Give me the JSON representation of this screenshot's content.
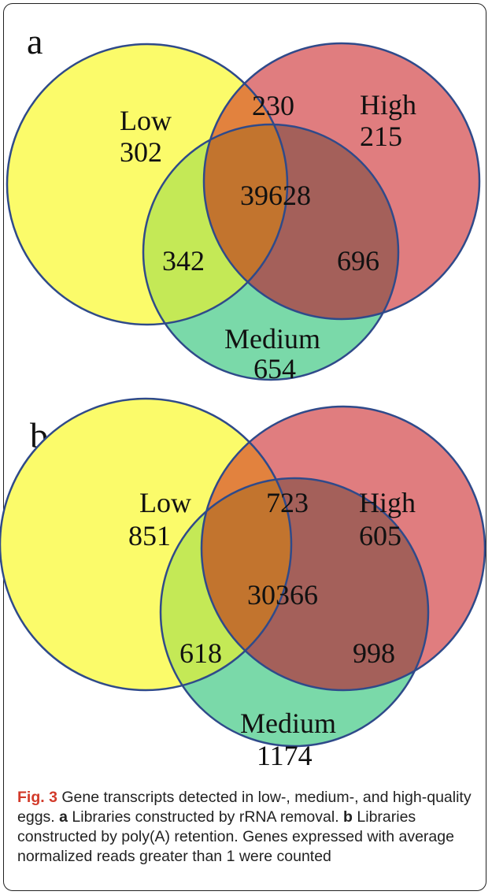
{
  "panels": [
    {
      "letter": "a",
      "sets": {
        "low": {
          "name": "Low",
          "only": "302"
        },
        "high": {
          "name": "High",
          "only": "215"
        },
        "medium": {
          "name": "Medium",
          "only": "654"
        }
      },
      "overlaps": {
        "low_high": "230",
        "low_medium": "342",
        "high_medium": "696",
        "all": "39628"
      }
    },
    {
      "letter": "b",
      "sets": {
        "low": {
          "name": "Low",
          "only": "851"
        },
        "high": {
          "name": "High",
          "only": "605"
        },
        "medium": {
          "name": "Medium",
          "only": "1174"
        }
      },
      "overlaps": {
        "low_high": "723",
        "low_medium": "618",
        "high_medium": "998",
        "all": "30366"
      }
    }
  ],
  "colors": {
    "low": "#fbfb6a",
    "high": "#e07d7f",
    "medium": "#7ad9a9",
    "low_high": "#e2823e",
    "low_medium": "#c4e956",
    "high_medium": "#a4605a",
    "all": "#c2742e",
    "outline": "#2f4a8a"
  },
  "caption": {
    "fig_label": "Fig. 3",
    "text1": " Gene transcripts detected in low-, medium-, and high-quality eggs. ",
    "part_a": "a",
    "text2": " Libraries constructed by rRNA removal. ",
    "part_b": "b",
    "text3": " Libraries constructed by poly(A) retention. Genes expressed with average normalized reads greater than 1 were counted"
  }
}
